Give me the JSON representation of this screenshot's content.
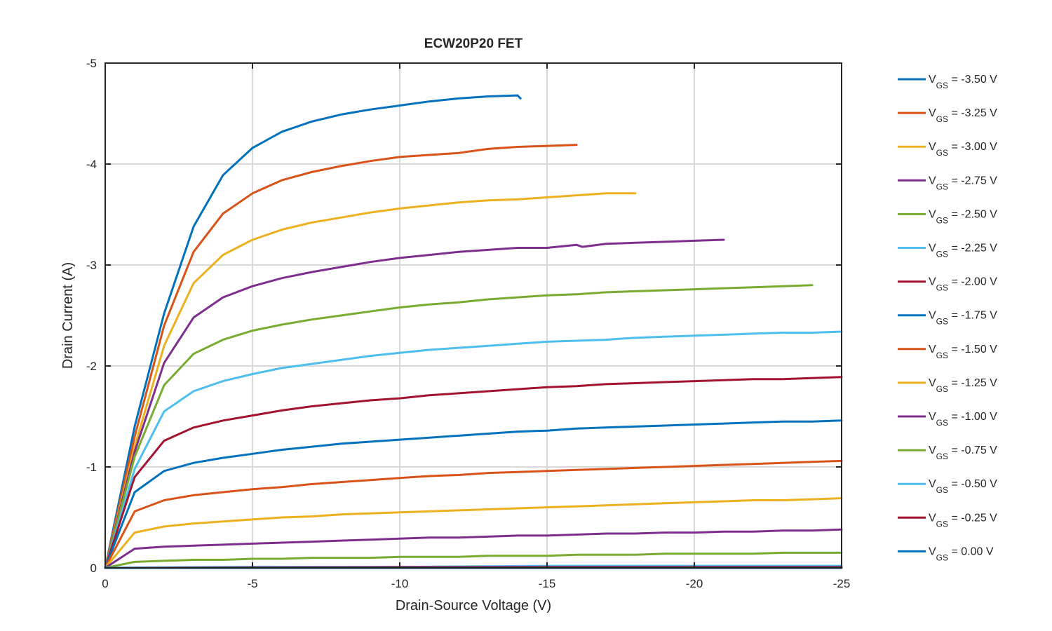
{
  "chart_data": {
    "type": "line",
    "title": "ECW20P20 FET",
    "xlabel": "Drain-Source Voltage (V)",
    "ylabel": "Drain Current (A)",
    "xlim": [
      0,
      -25
    ],
    "ylim": [
      0,
      -5
    ],
    "xticks": [
      0,
      -5,
      -10,
      -15,
      -20,
      -25
    ],
    "xtick_labels": [
      "0",
      "-5",
      "-10",
      "-15",
      "-20",
      "-25"
    ],
    "yticks": [
      0,
      -1,
      -2,
      -3,
      -4,
      -5
    ],
    "ytick_labels": [
      "0",
      "-1",
      "-2",
      "-3",
      "-4",
      "-5"
    ],
    "grid": true,
    "legend_position": "right",
    "series": [
      {
        "name": "V_GS = -3.50 V",
        "label_main": "V",
        "label_sub": "GS",
        "label_rest": " = -3.50 V",
        "color": "#0072BD",
        "x": [
          0,
          -1,
          -2,
          -3,
          -4,
          -5,
          -6,
          -7,
          -8,
          -9,
          -10,
          -11,
          -12,
          -13,
          -14,
          -14.1
        ],
        "y": [
          0,
          -1.4,
          -2.52,
          -3.38,
          -3.89,
          -4.16,
          -4.32,
          -4.42,
          -4.49,
          -4.54,
          -4.58,
          -4.62,
          -4.65,
          -4.67,
          -4.68,
          -4.65
        ]
      },
      {
        "name": "V_GS = -3.25 V",
        "label_main": "V",
        "label_sub": "GS",
        "label_rest": " = -3.25 V",
        "color": "#D95319",
        "x": [
          0,
          -1,
          -2,
          -3,
          -4,
          -5,
          -6,
          -7,
          -8,
          -9,
          -10,
          -11,
          -12,
          -13,
          -14,
          -15,
          -16
        ],
        "y": [
          0,
          -1.3,
          -2.4,
          -3.13,
          -3.51,
          -3.71,
          -3.84,
          -3.92,
          -3.98,
          -4.03,
          -4.07,
          -4.09,
          -4.11,
          -4.15,
          -4.17,
          -4.18,
          -4.19
        ]
      },
      {
        "name": "V_GS = -3.00 V",
        "label_main": "V",
        "label_sub": "GS",
        "label_rest": " = -3.00 V",
        "color": "#EDB120",
        "x": [
          0,
          -1,
          -2,
          -3,
          -4,
          -5,
          -6,
          -7,
          -8,
          -9,
          -10,
          -11,
          -12,
          -13,
          -14,
          -15,
          -16,
          -17,
          -18
        ],
        "y": [
          0,
          -1.2,
          -2.2,
          -2.82,
          -3.1,
          -3.25,
          -3.35,
          -3.42,
          -3.47,
          -3.52,
          -3.56,
          -3.59,
          -3.62,
          -3.64,
          -3.65,
          -3.67,
          -3.69,
          -3.71,
          -3.71
        ]
      },
      {
        "name": "V_GS = -2.75 V",
        "label_main": "V",
        "label_sub": "GS",
        "label_rest": " = -2.75 V",
        "color": "#7E2F8E",
        "x": [
          0,
          -1,
          -2,
          -3,
          -4,
          -5,
          -6,
          -7,
          -8,
          -9,
          -10,
          -11,
          -12,
          -13,
          -14,
          -15,
          -16,
          -16.2,
          -17,
          -18,
          -19,
          -20,
          -21
        ],
        "y": [
          0,
          -1.15,
          -2.03,
          -2.48,
          -2.68,
          -2.79,
          -2.87,
          -2.93,
          -2.98,
          -3.03,
          -3.07,
          -3.1,
          -3.13,
          -3.15,
          -3.17,
          -3.17,
          -3.2,
          -3.18,
          -3.21,
          -3.22,
          -3.23,
          -3.24,
          -3.25
        ]
      },
      {
        "name": "V_GS = -2.50 V",
        "label_main": "V",
        "label_sub": "GS",
        "label_rest": " = -2.50 V",
        "color": "#77AC30",
        "x": [
          0,
          -1,
          -2,
          -3,
          -4,
          -5,
          -6,
          -7,
          -8,
          -9,
          -10,
          -11,
          -12,
          -13,
          -14,
          -15,
          -16,
          -17,
          -18,
          -19,
          -20,
          -21,
          -22,
          -23,
          -24
        ],
        "y": [
          0,
          -1.1,
          -1.81,
          -2.12,
          -2.26,
          -2.35,
          -2.41,
          -2.46,
          -2.5,
          -2.54,
          -2.58,
          -2.61,
          -2.63,
          -2.66,
          -2.68,
          -2.7,
          -2.71,
          -2.73,
          -2.74,
          -2.75,
          -2.76,
          -2.77,
          -2.78,
          -2.79,
          -2.8
        ]
      },
      {
        "name": "V_GS = -2.25 V",
        "label_main": "V",
        "label_sub": "GS",
        "label_rest": " = -2.25 V",
        "color": "#4DBEEE",
        "x": [
          0,
          -1,
          -2,
          -3,
          -4,
          -5,
          -6,
          -7,
          -8,
          -9,
          -10,
          -11,
          -12,
          -13,
          -14,
          -15,
          -16,
          -17,
          -18,
          -19,
          -20,
          -21,
          -22,
          -23,
          -24,
          -25
        ],
        "y": [
          0,
          -0.98,
          -1.55,
          -1.75,
          -1.85,
          -1.92,
          -1.98,
          -2.02,
          -2.06,
          -2.1,
          -2.13,
          -2.16,
          -2.18,
          -2.2,
          -2.22,
          -2.24,
          -2.25,
          -2.26,
          -2.28,
          -2.29,
          -2.3,
          -2.31,
          -2.32,
          -2.33,
          -2.33,
          -2.34
        ]
      },
      {
        "name": "V_GS = -2.00 V",
        "label_main": "V",
        "label_sub": "GS",
        "label_rest": " = -2.00 V",
        "color": "#A2142F",
        "x": [
          0,
          -1,
          -2,
          -3,
          -4,
          -5,
          -6,
          -7,
          -8,
          -9,
          -10,
          -11,
          -12,
          -13,
          -14,
          -15,
          -16,
          -17,
          -18,
          -19,
          -20,
          -21,
          -22,
          -23,
          -24,
          -25
        ],
        "y": [
          0,
          -0.9,
          -1.26,
          -1.39,
          -1.46,
          -1.51,
          -1.56,
          -1.6,
          -1.63,
          -1.66,
          -1.68,
          -1.71,
          -1.73,
          -1.75,
          -1.77,
          -1.79,
          -1.8,
          -1.82,
          -1.83,
          -1.84,
          -1.85,
          -1.86,
          -1.87,
          -1.87,
          -1.88,
          -1.89
        ]
      },
      {
        "name": "V_GS = -1.75 V",
        "label_main": "V",
        "label_sub": "GS",
        "label_rest": " = -1.75 V",
        "color": "#0072BD",
        "x": [
          0,
          -1,
          -2,
          -3,
          -4,
          -5,
          -6,
          -7,
          -8,
          -9,
          -10,
          -11,
          -12,
          -13,
          -14,
          -15,
          -16,
          -17,
          -18,
          -19,
          -20,
          -21,
          -22,
          -23,
          -24,
          -25
        ],
        "y": [
          0,
          -0.75,
          -0.96,
          -1.04,
          -1.09,
          -1.13,
          -1.17,
          -1.2,
          -1.23,
          -1.25,
          -1.27,
          -1.29,
          -1.31,
          -1.33,
          -1.35,
          -1.36,
          -1.38,
          -1.39,
          -1.4,
          -1.41,
          -1.42,
          -1.43,
          -1.44,
          -1.45,
          -1.45,
          -1.46
        ]
      },
      {
        "name": "V_GS = -1.50 V",
        "label_main": "V",
        "label_sub": "GS",
        "label_rest": " = -1.50 V",
        "color": "#D95319",
        "x": [
          0,
          -1,
          -2,
          -3,
          -4,
          -5,
          -6,
          -7,
          -8,
          -9,
          -10,
          -11,
          -12,
          -13,
          -14,
          -15,
          -16,
          -17,
          -18,
          -19,
          -20,
          -21,
          -22,
          -23,
          -24,
          -25
        ],
        "y": [
          0,
          -0.56,
          -0.67,
          -0.72,
          -0.75,
          -0.78,
          -0.8,
          -0.83,
          -0.85,
          -0.87,
          -0.89,
          -0.91,
          -0.92,
          -0.94,
          -0.95,
          -0.96,
          -0.97,
          -0.98,
          -0.99,
          -1.0,
          -1.01,
          -1.02,
          -1.03,
          -1.04,
          -1.05,
          -1.06
        ]
      },
      {
        "name": "V_GS = -1.25 V",
        "label_main": "V",
        "label_sub": "GS",
        "label_rest": " = -1.25 V",
        "color": "#EDB120",
        "x": [
          0,
          -1,
          -2,
          -3,
          -4,
          -5,
          -6,
          -7,
          -8,
          -9,
          -10,
          -11,
          -12,
          -13,
          -14,
          -15,
          -16,
          -17,
          -18,
          -19,
          -20,
          -21,
          -22,
          -23,
          -24,
          -25
        ],
        "y": [
          0,
          -0.35,
          -0.41,
          -0.44,
          -0.46,
          -0.48,
          -0.5,
          -0.51,
          -0.53,
          -0.54,
          -0.55,
          -0.56,
          -0.57,
          -0.58,
          -0.59,
          -0.6,
          -0.61,
          -0.62,
          -0.63,
          -0.64,
          -0.65,
          -0.66,
          -0.67,
          -0.67,
          -0.68,
          -0.69
        ]
      },
      {
        "name": "V_GS = -1.00 V",
        "label_main": "V",
        "label_sub": "GS",
        "label_rest": " = -1.00 V",
        "color": "#7E2F8E",
        "x": [
          0,
          -1,
          -2,
          -3,
          -4,
          -5,
          -6,
          -7,
          -8,
          -9,
          -10,
          -11,
          -12,
          -13,
          -14,
          -15,
          -16,
          -17,
          -18,
          -19,
          -20,
          -21,
          -22,
          -23,
          -24,
          -25
        ],
        "y": [
          0,
          -0.19,
          -0.21,
          -0.22,
          -0.23,
          -0.24,
          -0.25,
          -0.26,
          -0.27,
          -0.28,
          -0.29,
          -0.3,
          -0.3,
          -0.31,
          -0.32,
          -0.32,
          -0.33,
          -0.34,
          -0.34,
          -0.35,
          -0.35,
          -0.36,
          -0.36,
          -0.37,
          -0.37,
          -0.38
        ]
      },
      {
        "name": "V_GS = -0.75 V",
        "label_main": "V",
        "label_sub": "GS",
        "label_rest": " = -0.75 V",
        "color": "#77AC30",
        "x": [
          0,
          -1,
          -2,
          -3,
          -4,
          -5,
          -6,
          -7,
          -8,
          -9,
          -10,
          -11,
          -12,
          -13,
          -14,
          -15,
          -16,
          -17,
          -18,
          -19,
          -20,
          -21,
          -22,
          -23,
          -24,
          -25
        ],
        "y": [
          0,
          -0.06,
          -0.07,
          -0.08,
          -0.08,
          -0.09,
          -0.09,
          -0.1,
          -0.1,
          -0.1,
          -0.11,
          -0.11,
          -0.11,
          -0.12,
          -0.12,
          -0.12,
          -0.13,
          -0.13,
          -0.13,
          -0.14,
          -0.14,
          -0.14,
          -0.14,
          -0.15,
          -0.15,
          -0.15
        ]
      },
      {
        "name": "V_GS = -0.50 V",
        "label_main": "V",
        "label_sub": "GS",
        "label_rest": " = -0.50 V",
        "color": "#4DBEEE",
        "x": [
          0,
          -5,
          -10,
          -15,
          -20,
          -25
        ],
        "y": [
          0,
          -0.01,
          -0.01,
          -0.02,
          -0.02,
          -0.02
        ]
      },
      {
        "name": "V_GS = -0.25 V",
        "label_main": "V",
        "label_sub": "GS",
        "label_rest": " = -0.25 V",
        "color": "#A2142F",
        "x": [
          0,
          -5,
          -10,
          -15,
          -20,
          -25
        ],
        "y": [
          0,
          -0.005,
          -0.008,
          -0.01,
          -0.01,
          -0.01
        ]
      },
      {
        "name": "V_GS = 0.00 V",
        "label_main": "V",
        "label_sub": "GS",
        "label_rest": " = 0.00 V",
        "color": "#0072BD",
        "x": [
          0,
          -5,
          -10,
          -15,
          -20,
          -25
        ],
        "y": [
          0,
          0,
          0,
          0,
          0,
          0
        ]
      }
    ]
  }
}
